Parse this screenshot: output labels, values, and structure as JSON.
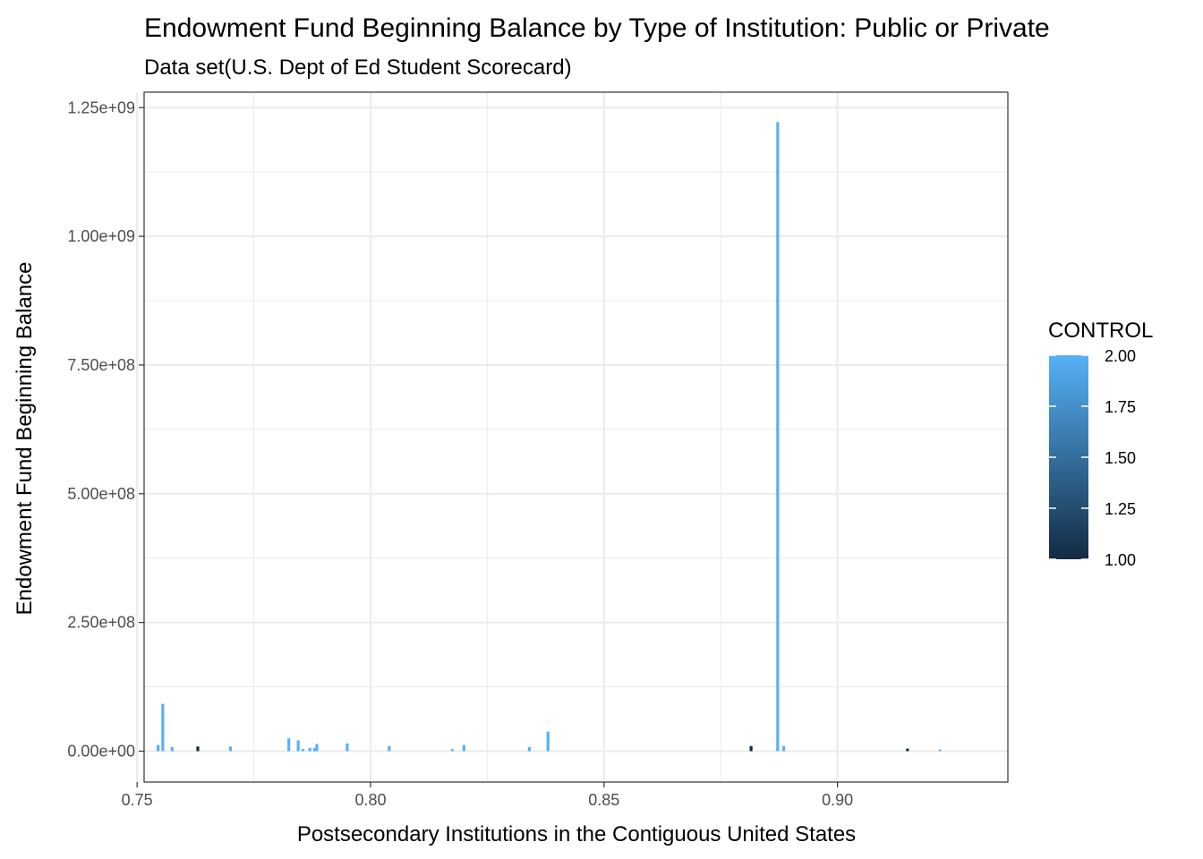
{
  "chart_data": {
    "type": "bar",
    "title": "Endowment Fund Beginning Balance by Type of Institution: Public or Private",
    "subtitle": "Data set(U.S. Dept of Ed Student Scorecard)",
    "xlabel": "Postsecondary Institutions in the Contiguous United States",
    "ylabel": "Endowment Fund Beginning Balance",
    "xlim": [
      0.7515,
      0.9365
    ],
    "ylim": [
      -60000000,
      1280000000
    ],
    "x_ticks": [
      {
        "value": 0.75,
        "label": "0.75"
      },
      {
        "value": 0.8,
        "label": "0.80"
      },
      {
        "value": 0.85,
        "label": "0.85"
      },
      {
        "value": 0.9,
        "label": "0.90"
      }
    ],
    "y_ticks": [
      {
        "value": 0,
        "label": "0.00e+00"
      },
      {
        "value": 250000000,
        "label": "2.50e+08"
      },
      {
        "value": 500000000,
        "label": "5.00e+08"
      },
      {
        "value": 750000000,
        "label": "7.50e+08"
      },
      {
        "value": 1000000000,
        "label": "1.00e+09"
      },
      {
        "value": 1250000000,
        "label": "1.25e+09"
      }
    ],
    "grid": true,
    "bars": [
      {
        "x": 0.7545,
        "y": 12000000,
        "control": 2
      },
      {
        "x": 0.7555,
        "y": 92000000,
        "control": 2
      },
      {
        "x": 0.7575,
        "y": 8000000,
        "control": 2
      },
      {
        "x": 0.763,
        "y": 9000000,
        "control": 1
      },
      {
        "x": 0.77,
        "y": 9000000,
        "control": 2
      },
      {
        "x": 0.7825,
        "y": 25000000,
        "control": 2
      },
      {
        "x": 0.7845,
        "y": 21000000,
        "control": 2
      },
      {
        "x": 0.7855,
        "y": 4000000,
        "control": 2
      },
      {
        "x": 0.787,
        "y": 6000000,
        "control": 2
      },
      {
        "x": 0.788,
        "y": 6000000,
        "control": 2
      },
      {
        "x": 0.7885,
        "y": 14000000,
        "control": 2
      },
      {
        "x": 0.795,
        "y": 15000000,
        "control": 2
      },
      {
        "x": 0.804,
        "y": 10000000,
        "control": 2
      },
      {
        "x": 0.8175,
        "y": 4000000,
        "control": 2
      },
      {
        "x": 0.82,
        "y": 12000000,
        "control": 2
      },
      {
        "x": 0.834,
        "y": 8000000,
        "control": 2
      },
      {
        "x": 0.838,
        "y": 38000000,
        "control": 2
      },
      {
        "x": 0.8815,
        "y": 10000000,
        "control": 1
      },
      {
        "x": 0.8872,
        "y": 1222000000,
        "control": 2
      },
      {
        "x": 0.8885,
        "y": 10000000,
        "control": 2
      },
      {
        "x": 0.915,
        "y": 5000000,
        "control": 1
      },
      {
        "x": 0.922,
        "y": 3000000,
        "control": 2
      }
    ],
    "legend": {
      "title": "CONTROL",
      "position": "right",
      "range": [
        1.0,
        2.0
      ],
      "breaks": [
        {
          "value": 2.0,
          "label": "2.00"
        },
        {
          "value": 1.75,
          "label": "1.75"
        },
        {
          "value": 1.5,
          "label": "1.50"
        },
        {
          "value": 1.25,
          "label": "1.25"
        },
        {
          "value": 1.0,
          "label": "1.00"
        }
      ],
      "color_low": "#132B43",
      "color_high": "#56B1F7"
    }
  }
}
